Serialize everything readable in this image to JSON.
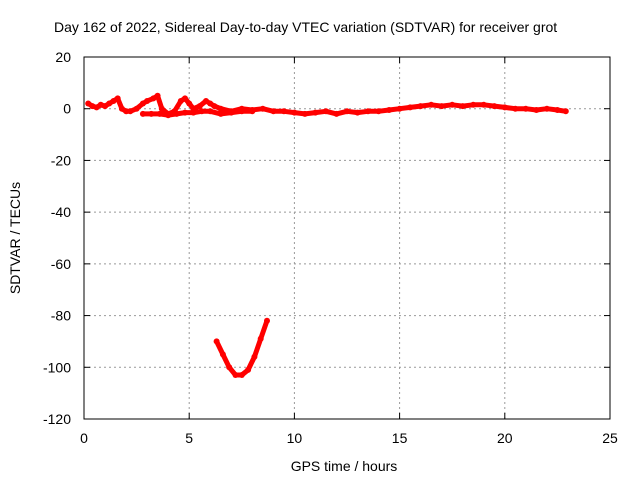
{
  "chart_data": {
    "type": "scatter",
    "title": "Day 162 of 2022, Sidereal Day-to-day VTEC variation (SDTVAR) for receiver grot",
    "xlabel": "GPS time / hours",
    "ylabel": "SDTVAR / TECUs",
    "xlim": [
      0,
      25
    ],
    "ylim": [
      -120,
      20
    ],
    "xticks": [
      0,
      5,
      10,
      15,
      20,
      25
    ],
    "yticks": [
      -120,
      -100,
      -80,
      -60,
      -40,
      -20,
      0,
      20
    ],
    "grid": true,
    "legend": "none",
    "series_color": "#ff0000",
    "series": [
      {
        "name": "main-band",
        "values": [
          [
            0.2,
            2
          ],
          [
            0.4,
            1
          ],
          [
            0.6,
            0.5
          ],
          [
            0.8,
            1.5
          ],
          [
            1.0,
            1
          ],
          [
            1.2,
            2
          ],
          [
            1.4,
            3
          ],
          [
            1.6,
            4
          ],
          [
            1.8,
            0
          ],
          [
            2.0,
            -1
          ],
          [
            2.2,
            -1
          ],
          [
            2.5,
            0
          ],
          [
            2.8,
            2
          ],
          [
            3.0,
            3
          ],
          [
            3.3,
            4
          ],
          [
            3.5,
            5
          ],
          [
            3.7,
            0
          ],
          [
            4.0,
            -2
          ],
          [
            4.3,
            -1
          ],
          [
            4.6,
            3
          ],
          [
            4.8,
            4
          ],
          [
            5.0,
            2
          ],
          [
            5.2,
            0
          ],
          [
            5.5,
            1
          ],
          [
            5.8,
            3
          ],
          [
            6.0,
            2
          ],
          [
            6.2,
            1
          ],
          [
            6.5,
            0
          ],
          [
            7.0,
            -1
          ],
          [
            7.5,
            0
          ],
          [
            8.0,
            -0.5
          ],
          [
            8.5,
            0
          ],
          [
            9.0,
            -1
          ],
          [
            9.5,
            -1
          ],
          [
            10.0,
            -1.5
          ],
          [
            10.5,
            -2
          ],
          [
            11.0,
            -1.5
          ],
          [
            11.5,
            -1
          ],
          [
            12.0,
            -2
          ],
          [
            12.5,
            -1
          ],
          [
            13.0,
            -1.5
          ],
          [
            13.5,
            -1
          ],
          [
            14.0,
            -1
          ],
          [
            14.5,
            -0.5
          ],
          [
            15.0,
            0
          ],
          [
            15.5,
            0.5
          ],
          [
            16.0,
            1
          ],
          [
            16.5,
            1.5
          ],
          [
            17.0,
            1
          ],
          [
            17.5,
            1.5
          ],
          [
            18.0,
            1
          ],
          [
            18.5,
            1.5
          ],
          [
            19.0,
            1.5
          ],
          [
            19.5,
            1
          ],
          [
            20.0,
            0.5
          ],
          [
            20.5,
            0
          ],
          [
            21.0,
            0
          ],
          [
            21.5,
            -0.5
          ],
          [
            22.0,
            0
          ],
          [
            22.5,
            -0.5
          ],
          [
            22.9,
            -1
          ]
        ]
      },
      {
        "name": "secondary-band",
        "values": [
          [
            2.8,
            -2
          ],
          [
            3.2,
            -2
          ],
          [
            3.6,
            -2
          ],
          [
            4.0,
            -2.5
          ],
          [
            4.4,
            -2
          ],
          [
            4.8,
            -1.5
          ],
          [
            5.2,
            -1.5
          ],
          [
            5.6,
            -1
          ],
          [
            6.0,
            -1
          ],
          [
            6.5,
            -2
          ],
          [
            7.0,
            -1.5
          ],
          [
            7.5,
            -1
          ],
          [
            8.0,
            -1
          ]
        ]
      },
      {
        "name": "dip-arc",
        "values": [
          [
            6.3,
            -90
          ],
          [
            6.6,
            -95
          ],
          [
            6.9,
            -100
          ],
          [
            7.2,
            -103
          ],
          [
            7.5,
            -103
          ],
          [
            7.8,
            -101
          ],
          [
            8.1,
            -96
          ],
          [
            8.4,
            -89
          ],
          [
            8.7,
            -82
          ]
        ]
      }
    ]
  }
}
